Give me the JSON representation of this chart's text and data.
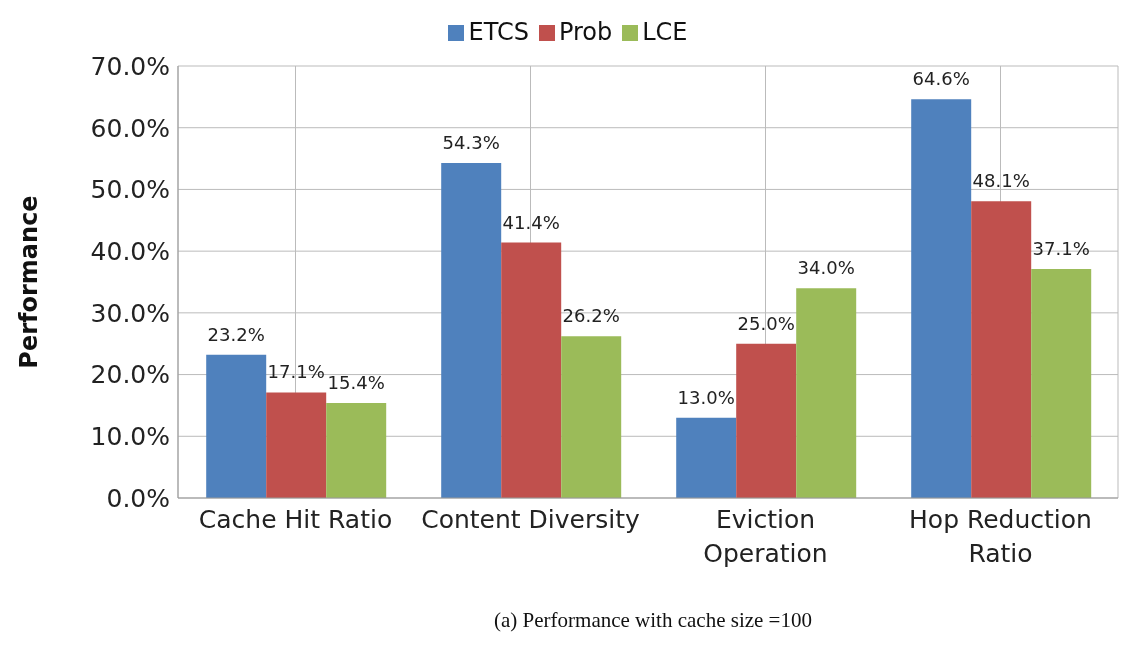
{
  "chart_data": {
    "type": "bar",
    "ylabel": "Performance",
    "categories": [
      "Cache Hit Ratio",
      "Content Diversity",
      "Eviction\nOperation",
      "Hop Reduction\nRatio"
    ],
    "series": [
      {
        "name": "ETCS",
        "color": "#4f81bd",
        "values": [
          23.2,
          54.3,
          13.0,
          64.6
        ],
        "value_labels": [
          "23.2%",
          "54.3%",
          "13.0%",
          "64.6%"
        ]
      },
      {
        "name": "Prob",
        "color": "#c0504d",
        "values": [
          17.1,
          41.4,
          25.0,
          48.1
        ],
        "value_labels": [
          "17.1%",
          "41.4%",
          "25.0%",
          "48.1%"
        ]
      },
      {
        "name": "LCE",
        "color": "#9bbb59",
        "values": [
          15.4,
          26.2,
          34.0,
          37.1
        ],
        "value_labels": [
          "15.4%",
          "26.2%",
          "34.0%",
          "37.1%"
        ]
      }
    ],
    "ylim": [
      0,
      70
    ],
    "yticks": [
      {
        "value": 0,
        "label": "0.0%"
      },
      {
        "value": 10,
        "label": "10.0%"
      },
      {
        "value": 20,
        "label": "20.0%"
      },
      {
        "value": 30,
        "label": "30.0%"
      },
      {
        "value": 40,
        "label": "40.0%"
      },
      {
        "value": 50,
        "label": "50.0%"
      },
      {
        "value": 60,
        "label": "60.0%"
      },
      {
        "value": 70,
        "label": "70.0%"
      }
    ],
    "grid": true,
    "legend": "top",
    "annotations": [
      "(a)   Performance with cache size =100"
    ]
  }
}
